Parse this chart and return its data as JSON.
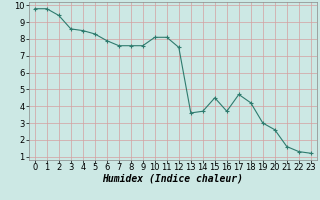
{
  "x": [
    0,
    1,
    2,
    3,
    4,
    5,
    6,
    7,
    8,
    9,
    10,
    11,
    12,
    13,
    14,
    15,
    16,
    17,
    18,
    19,
    20,
    21,
    22,
    23
  ],
  "y": [
    9.8,
    9.8,
    9.4,
    8.6,
    8.5,
    8.3,
    7.9,
    7.6,
    7.6,
    7.6,
    8.1,
    8.1,
    7.5,
    3.6,
    3.7,
    4.5,
    3.7,
    4.7,
    4.2,
    3.0,
    2.6,
    1.6,
    1.3,
    1.2
  ],
  "line_color": "#2e7b6e",
  "marker": "+",
  "bg_color": "#cce8e4",
  "grid_color": "#b8d8d4",
  "xlabel": "Humidex (Indice chaleur)",
  "xlim": [
    -0.5,
    23.5
  ],
  "ylim": [
    0.8,
    10.2
  ],
  "yticks": [
    1,
    2,
    3,
    4,
    5,
    6,
    7,
    8,
    9,
    10
  ],
  "xticks": [
    0,
    1,
    2,
    3,
    4,
    5,
    6,
    7,
    8,
    9,
    10,
    11,
    12,
    13,
    14,
    15,
    16,
    17,
    18,
    19,
    20,
    21,
    22,
    23
  ],
  "tick_fontsize": 6,
  "xlabel_fontsize": 7
}
